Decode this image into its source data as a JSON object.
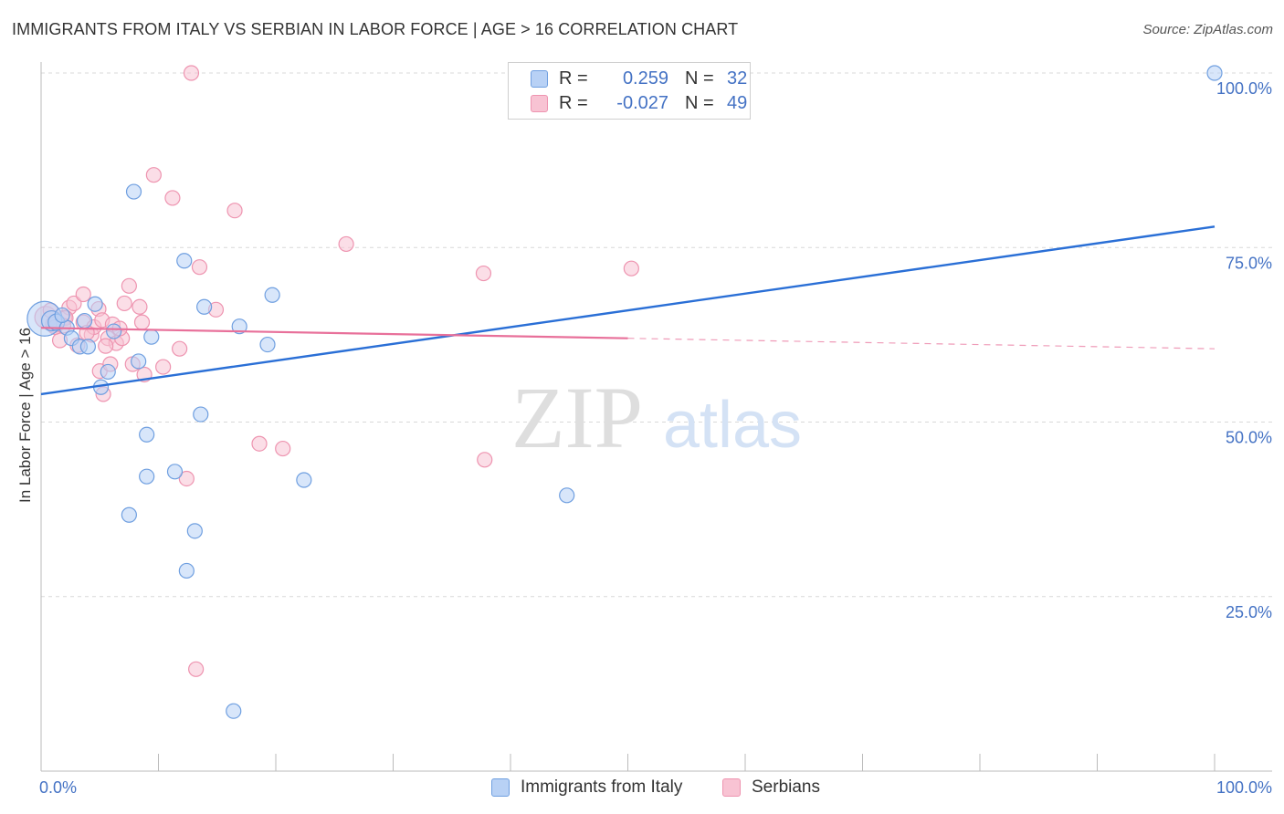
{
  "header": {
    "title": "IMMIGRANTS FROM ITALY VS SERBIAN IN LABOR FORCE | AGE > 16 CORRELATION CHART",
    "source": "Source: ZipAtlas.com"
  },
  "watermark": {
    "zip": "ZIP",
    "atlas": "atlas"
  },
  "legend": {
    "r_label": "R =",
    "n_label": "N =",
    "rows": [
      {
        "r": "0.259",
        "n": "32"
      },
      {
        "r": "-0.027",
        "n": "49"
      }
    ]
  },
  "bottom_legend": [
    "Immigrants from Italy",
    "Serbians"
  ],
  "colors": {
    "italy_fill": "#b8d1f5",
    "italy_stroke": "#6f9fe0",
    "italy_line": "#2a6fd6",
    "serb_fill": "#f8c3d3",
    "serb_stroke": "#ee94b0",
    "serb_line": "#e8709a",
    "accent_text": "#4472c4",
    "grid": "#d8d8d8"
  },
  "chart_data": {
    "type": "scatter",
    "title": "IMMIGRANTS FROM ITALY VS SERBIAN IN LABOR FORCE | AGE > 16 CORRELATION CHART",
    "xlabel": "",
    "ylabel": "In Labor Force | Age > 16",
    "xlim": [
      0,
      100
    ],
    "ylim": [
      0,
      100
    ],
    "x_tick_labels": [
      "0.0%",
      "100.0%"
    ],
    "y_ticks": [
      25,
      50,
      75,
      100
    ],
    "y_tick_labels": [
      "25.0%",
      "50.0%",
      "75.0%",
      "100.0%"
    ],
    "grid": true,
    "series": [
      {
        "name": "Immigrants from Italy",
        "r": 0.259,
        "n": 32,
        "trend": {
          "x0": 0,
          "y0": 54.0,
          "x1": 100,
          "y1": 78.0,
          "dashed_from": null
        },
        "points": [
          [
            0.3,
            64.8,
            18
          ],
          [
            0.9,
            64.5,
            10
          ],
          [
            1.3,
            64.3,
            8
          ],
          [
            2.2,
            63.5,
            7
          ],
          [
            2.6,
            62.0,
            7
          ],
          [
            3.3,
            60.8,
            7
          ],
          [
            3.7,
            64.5,
            7
          ],
          [
            4.0,
            60.8,
            7
          ],
          [
            4.6,
            66.9,
            7
          ],
          [
            5.1,
            55.0,
            7
          ],
          [
            5.7,
            57.2,
            7
          ],
          [
            6.2,
            63.0,
            7
          ],
          [
            8.3,
            58.7,
            7
          ],
          [
            9.4,
            62.2,
            7
          ],
          [
            11.4,
            42.9,
            7
          ],
          [
            13.6,
            51.1,
            7
          ],
          [
            12.4,
            28.7,
            7
          ],
          [
            9.0,
            42.2,
            7
          ],
          [
            7.5,
            36.7,
            7
          ],
          [
            9.0,
            48.2,
            7
          ],
          [
            7.9,
            83.0,
            7
          ],
          [
            12.2,
            73.1,
            7
          ],
          [
            13.1,
            34.4,
            7
          ],
          [
            13.9,
            66.5,
            7
          ],
          [
            16.9,
            63.7,
            7
          ],
          [
            19.3,
            61.1,
            7
          ],
          [
            19.7,
            68.2,
            7
          ],
          [
            22.4,
            41.7,
            7
          ],
          [
            16.4,
            8.6,
            7
          ],
          [
            44.8,
            39.5,
            7
          ],
          [
            100.0,
            100.0,
            7
          ],
          [
            1.8,
            65.3,
            7
          ]
        ]
      },
      {
        "name": "Serbians",
        "r": -0.027,
        "n": 49,
        "trend": {
          "x0": 0,
          "y0": 63.5,
          "x1": 100,
          "y1": 60.5,
          "dashed_from": 50
        },
        "points": [
          [
            0.4,
            65.0,
            11
          ],
          [
            1.1,
            64.0,
            8
          ],
          [
            1.6,
            61.7,
            7
          ],
          [
            2.0,
            65.0,
            7
          ],
          [
            2.4,
            66.4,
            7
          ],
          [
            2.8,
            67.0,
            7
          ],
          [
            3.1,
            61.0,
            7
          ],
          [
            3.6,
            64.3,
            7
          ],
          [
            3.6,
            68.3,
            7
          ],
          [
            4.3,
            62.5,
            7
          ],
          [
            4.5,
            63.6,
            7
          ],
          [
            4.9,
            66.2,
            7
          ],
          [
            5.0,
            57.3,
            7
          ],
          [
            5.2,
            64.6,
            7
          ],
          [
            5.3,
            54.0,
            7
          ],
          [
            5.7,
            62.0,
            7
          ],
          [
            5.9,
            58.3,
            7
          ],
          [
            6.1,
            64.0,
            7
          ],
          [
            6.4,
            61.3,
            7
          ],
          [
            6.9,
            62.0,
            7
          ],
          [
            7.1,
            67.0,
            7
          ],
          [
            7.5,
            69.5,
            7
          ],
          [
            7.8,
            58.3,
            7
          ],
          [
            8.4,
            66.5,
            7
          ],
          [
            8.6,
            64.3,
            7
          ],
          [
            8.8,
            56.8,
            7
          ],
          [
            9.6,
            85.4,
            7
          ],
          [
            10.4,
            57.9,
            7
          ],
          [
            11.2,
            82.1,
            7
          ],
          [
            11.8,
            60.5,
            7
          ],
          [
            12.4,
            41.9,
            7
          ],
          [
            12.8,
            100.0,
            7
          ],
          [
            13.2,
            14.6,
            7
          ],
          [
            13.5,
            72.2,
            7
          ],
          [
            14.9,
            66.1,
            7
          ],
          [
            16.5,
            80.3,
            7
          ],
          [
            18.6,
            46.9,
            7
          ],
          [
            20.6,
            46.2,
            7
          ],
          [
            26.0,
            75.5,
            7
          ],
          [
            37.7,
            71.3,
            7
          ],
          [
            37.8,
            44.6,
            7
          ],
          [
            50.3,
            72.0,
            7
          ],
          [
            1.2,
            63.6,
            7
          ],
          [
            2.1,
            64.9,
            7
          ],
          [
            3.9,
            62.8,
            7
          ],
          [
            0.8,
            66.0,
            7
          ],
          [
            1.9,
            63.8,
            7
          ],
          [
            5.5,
            60.9,
            7
          ],
          [
            6.7,
            63.4,
            7
          ]
        ]
      }
    ]
  }
}
